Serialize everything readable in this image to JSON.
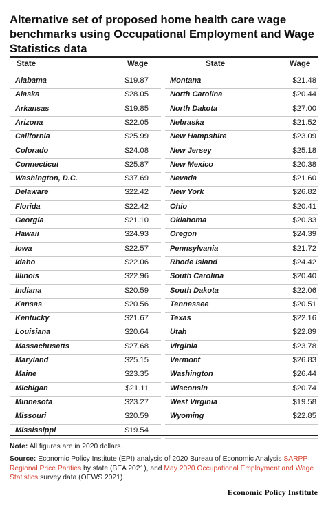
{
  "title_lines": [
    "Alternative set of proposed home health care wage",
    "benchmarks using Occupational Employment and Wage",
    "Statistics data"
  ],
  "headers": {
    "state": "State",
    "wage": "Wage"
  },
  "left_rows": [
    {
      "state": "Alabama",
      "wage": "$19.87"
    },
    {
      "state": "Alaska",
      "wage": "$28.05"
    },
    {
      "state": "Arkansas",
      "wage": "$19.85"
    },
    {
      "state": "Arizona",
      "wage": "$22.05"
    },
    {
      "state": "California",
      "wage": "$25.99"
    },
    {
      "state": "Colorado",
      "wage": "$24.08"
    },
    {
      "state": "Connecticut",
      "wage": "$25.87"
    },
    {
      "state": "Washington, D.C.",
      "wage": "$37.69"
    },
    {
      "state": "Delaware",
      "wage": "$22.42"
    },
    {
      "state": "Florida",
      "wage": "$22.42"
    },
    {
      "state": "Georgia",
      "wage": "$21.10"
    },
    {
      "state": "Hawaii",
      "wage": "$24.93"
    },
    {
      "state": "Iowa",
      "wage": "$22.57"
    },
    {
      "state": "Idaho",
      "wage": "$22.06"
    },
    {
      "state": "Illinois",
      "wage": "$22.96"
    },
    {
      "state": "Indiana",
      "wage": "$20.59"
    },
    {
      "state": "Kansas",
      "wage": "$20.56"
    },
    {
      "state": "Kentucky",
      "wage": "$21.67"
    },
    {
      "state": "Louisiana",
      "wage": "$20.64"
    },
    {
      "state": "Massachusetts",
      "wage": "$27.68"
    },
    {
      "state": "Maryland",
      "wage": "$25.15"
    },
    {
      "state": "Maine",
      "wage": "$23.35"
    },
    {
      "state": "Michigan",
      "wage": "$21.11"
    },
    {
      "state": "Minnesota",
      "wage": "$23.27"
    },
    {
      "state": "Missouri",
      "wage": "$20.59"
    },
    {
      "state": "Mississippi",
      "wage": "$19.54"
    }
  ],
  "right_rows": [
    {
      "state": "Montana",
      "wage": "$21.48"
    },
    {
      "state": "North Carolina",
      "wage": "$20.44"
    },
    {
      "state": "North Dakota",
      "wage": "$27.00"
    },
    {
      "state": "Nebraska",
      "wage": "$21.52"
    },
    {
      "state": "New Hampshire",
      "wage": "$23.09"
    },
    {
      "state": "New Jersey",
      "wage": "$25.18"
    },
    {
      "state": "New Mexico",
      "wage": "$20.38"
    },
    {
      "state": "Nevada",
      "wage": "$21.60"
    },
    {
      "state": "New York",
      "wage": "$26.82"
    },
    {
      "state": "Ohio",
      "wage": "$20.41"
    },
    {
      "state": "Oklahoma",
      "wage": "$20.33"
    },
    {
      "state": "Oregon",
      "wage": "$24.39"
    },
    {
      "state": "Pennsylvania",
      "wage": "$21.72"
    },
    {
      "state": "Rhode Island",
      "wage": "$24.42"
    },
    {
      "state": "South Carolina",
      "wage": "$20.40"
    },
    {
      "state": "South Dakota",
      "wage": "$22.06"
    },
    {
      "state": "Tennessee",
      "wage": "$20.51"
    },
    {
      "state": "Texas",
      "wage": "$22.16"
    },
    {
      "state": "Utah",
      "wage": "$22.89"
    },
    {
      "state": "Virginia",
      "wage": "$23.78"
    },
    {
      "state": "Vermont",
      "wage": "$26.83"
    },
    {
      "state": "Washington",
      "wage": "$26.44"
    },
    {
      "state": "Wisconsin",
      "wage": "$20.74"
    },
    {
      "state": "West Virginia",
      "wage": "$19.58"
    },
    {
      "state": "Wyoming",
      "wage": "$22.85"
    }
  ],
  "note": {
    "label": "Note:",
    "text": "All figures are in 2020 dollars."
  },
  "source": {
    "label": "Source:",
    "line1_text": "Economic Policy Institute (EPI) analysis of 2020 Bureau of Economic Analysis",
    "line1_link": "SARPP",
    "line2_link": "Regional Price Parities",
    "line2_text": "by state (BEA 2021), and",
    "line2_link2": "May 2020 Occupational Employment and Wage",
    "line3_link": "Statistics",
    "line3_text": "survey data (OEWS 2021)."
  },
  "brand": "Economic Policy Institute",
  "colors": {
    "link": "#d4402f",
    "rule": "#222222",
    "rowline": "#c9c9c9"
  }
}
